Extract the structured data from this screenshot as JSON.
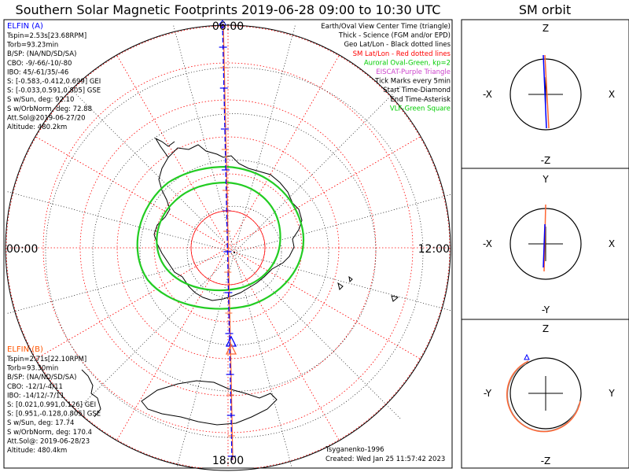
{
  "chart_data": {
    "type": "polar-map",
    "title": "Southern Solar Magnetic Footprints 2019-06-28 09:00 to 10:30 UTC",
    "side_title": "SM orbit",
    "mlt_labels": {
      "top": "06:00",
      "left": "00:00",
      "right": "12:00",
      "bottom": "18:00"
    },
    "legend": [
      {
        "text": "Earth/Oval View Center Time (triangle)",
        "color": "#000000"
      },
      {
        "text": "Thick - Science (FGM and/or EPD)",
        "color": "#000000"
      },
      {
        "text": "Geo Lat/Lon - Black dotted lines",
        "color": "#000000"
      },
      {
        "text": "SM Lat/Lon - Red dotted lines",
        "color": "#ff0000"
      },
      {
        "text": "Auroral Oval-Green, kp=2",
        "color": "#00cc00"
      },
      {
        "text": "EISCAT-Purple Triangle",
        "color": "#cc44cc"
      },
      {
        "text": "Tick Marks every 5min",
        "color": "#000000"
      },
      {
        "text": "Start Time-Diamond",
        "color": "#000000"
      },
      {
        "text": "End Time-Asterisk",
        "color": "#000000"
      },
      {
        "text": "VLF-Green Square",
        "color": "#00cc00"
      }
    ],
    "elfin_a": {
      "name": "ELFIN (A)",
      "color": "#0000ff",
      "lines": [
        "Tspin=2.53s[23.68RPM]",
        "Torb=93.23min",
        "B/SP: (NA/ND/SD/SA)",
        "CBO: -9/-66/-10/-80",
        "IBO: 45/-61/35/-46",
        "S: [-0.583,-0.412,0.699] GEI",
        "S: [-0.033,0.591,0.805] GSE",
        "S w/Sun, deg: 92.10",
        "S w/OrbNorm, deg: 72.88",
        "Att.Sol@2019-06-27/20",
        "Altitude: 480.2km"
      ]
    },
    "elfin_b": {
      "name": "ELFIN (B)",
      "color": "#ff5500",
      "lines": [
        "Tspin=2.71s[22.10RPM]",
        "Torb=93.30min",
        "B/SP: (NA/ND/SD/SA)",
        "CBO: -12/1/-4/11",
        "IBO: -14/12/-7/11",
        "S: [0.021,0.991,0.126] GEI",
        "S: [0.951,-0.128,0.805] GSE",
        "S w/Sun, deg: 17.74",
        "S w/OrbNorm, deg: 170.4",
        "Att.Sol@: 2019-06-28/23",
        "Altitude: 480.4km"
      ]
    },
    "footer": {
      "credit": "Tsyganenko-1996",
      "created": "Created: Wed Jan 25 11:57:42 2023"
    },
    "sm_orbit": [
      {
        "name": "xz",
        "top": "Z",
        "bottom": "-Z",
        "left": "-X",
        "right": "X"
      },
      {
        "name": "xy",
        "top": "Y",
        "bottom": "-Y",
        "left": "-X",
        "right": "X"
      },
      {
        "name": "yz",
        "top": "Z",
        "bottom": "-Z",
        "left": "-Y",
        "right": "Y"
      }
    ]
  }
}
